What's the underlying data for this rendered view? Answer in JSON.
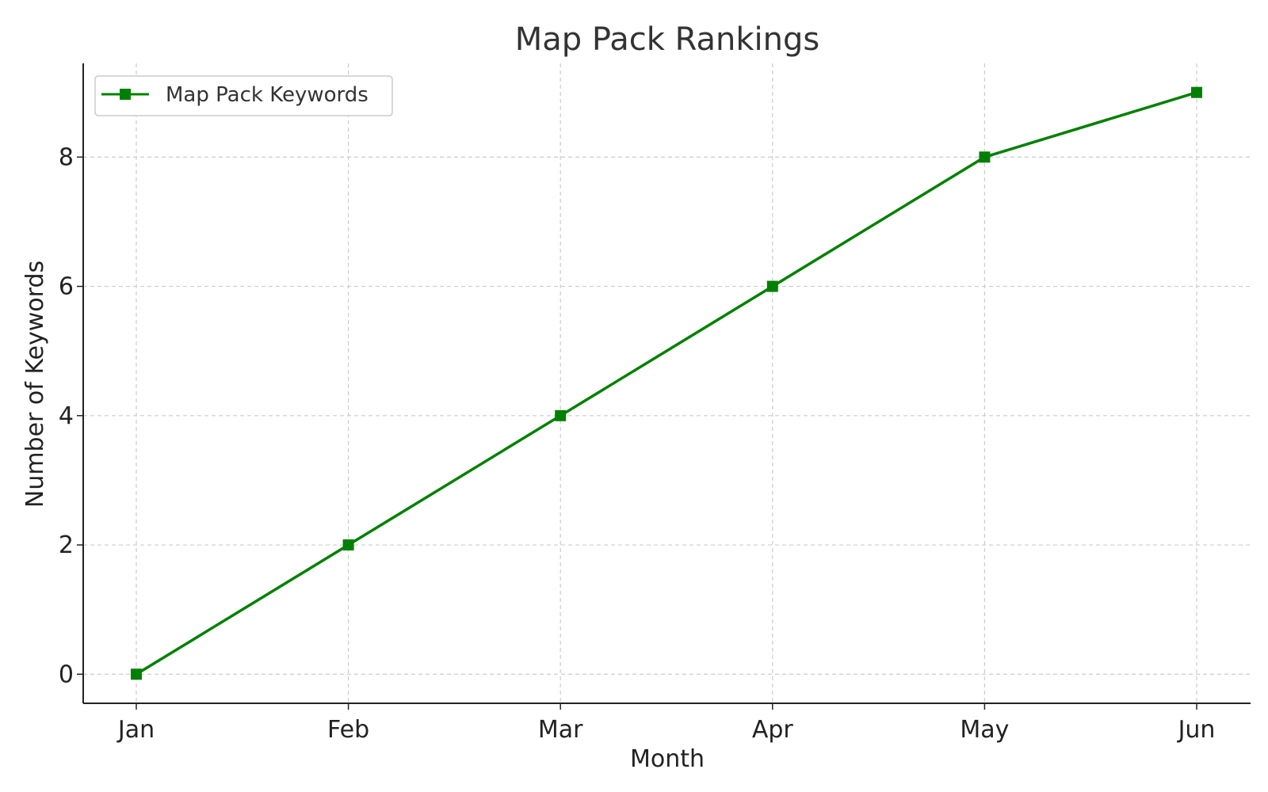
{
  "chart_data": {
    "type": "line",
    "title": "Map Pack Rankings",
    "xlabel": "Month",
    "ylabel": "Number of Keywords",
    "categories": [
      "Jan",
      "Feb",
      "Mar",
      "Apr",
      "May",
      "Jun"
    ],
    "series": [
      {
        "name": "Map Pack Keywords",
        "values": [
          0,
          2,
          4,
          6,
          8,
          9
        ],
        "color": "#008000",
        "marker": "square"
      }
    ],
    "ylim": [
      -0.45,
      9.45
    ],
    "yticks": [
      0,
      2,
      4,
      6,
      8
    ],
    "grid": true,
    "grid_style": "dashed",
    "legend": "top-left"
  }
}
